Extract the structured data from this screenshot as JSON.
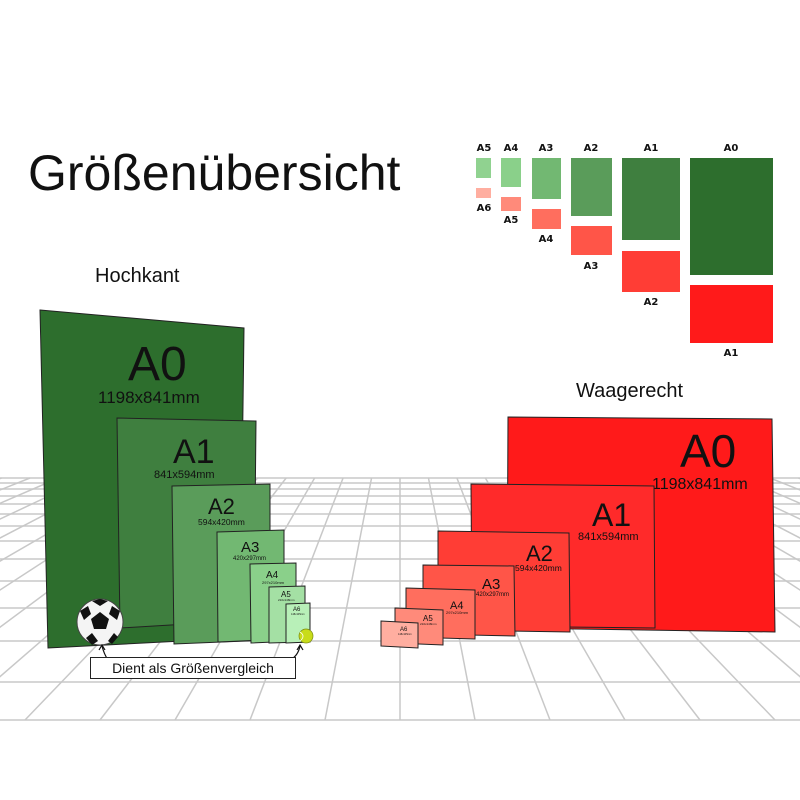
{
  "title": "Größenübersicht",
  "portrait_label": "Hochkant",
  "landscape_label": "Waagerecht",
  "comparison_label": "Dient als Größenvergleich",
  "sizes": [
    {
      "name": "A0",
      "dims": "1198x841mm"
    },
    {
      "name": "A1",
      "dims": "841x594mm"
    },
    {
      "name": "A2",
      "dims": "594x420mm"
    },
    {
      "name": "A3",
      "dims": "420x297mm"
    },
    {
      "name": "A4",
      "dims": "297x210mm"
    },
    {
      "name": "A5",
      "dims": "210x148mm"
    },
    {
      "name": "A6",
      "dims": "148x105mm"
    }
  ],
  "legend": {
    "green": [
      "A5",
      "A4",
      "A3",
      "A2",
      "A1",
      "A0"
    ],
    "red": [
      "A6",
      "A5",
      "A4",
      "A3",
      "A2",
      "A1"
    ]
  },
  "colors": {
    "green": [
      "#2d6e2d",
      "#3f7f3f",
      "#5a9c5a",
      "#72b872",
      "#8ad08a",
      "#a4e0a4",
      "#b8f0b8"
    ],
    "red": [
      "#ff1a1a",
      "#ff2a2a",
      "#ff3d35",
      "#ff5548",
      "#ff6e5e",
      "#ff8a7a",
      "#ffaea0"
    ]
  },
  "icons": [
    "soccer-ball-icon",
    "tennis-ball-icon"
  ]
}
